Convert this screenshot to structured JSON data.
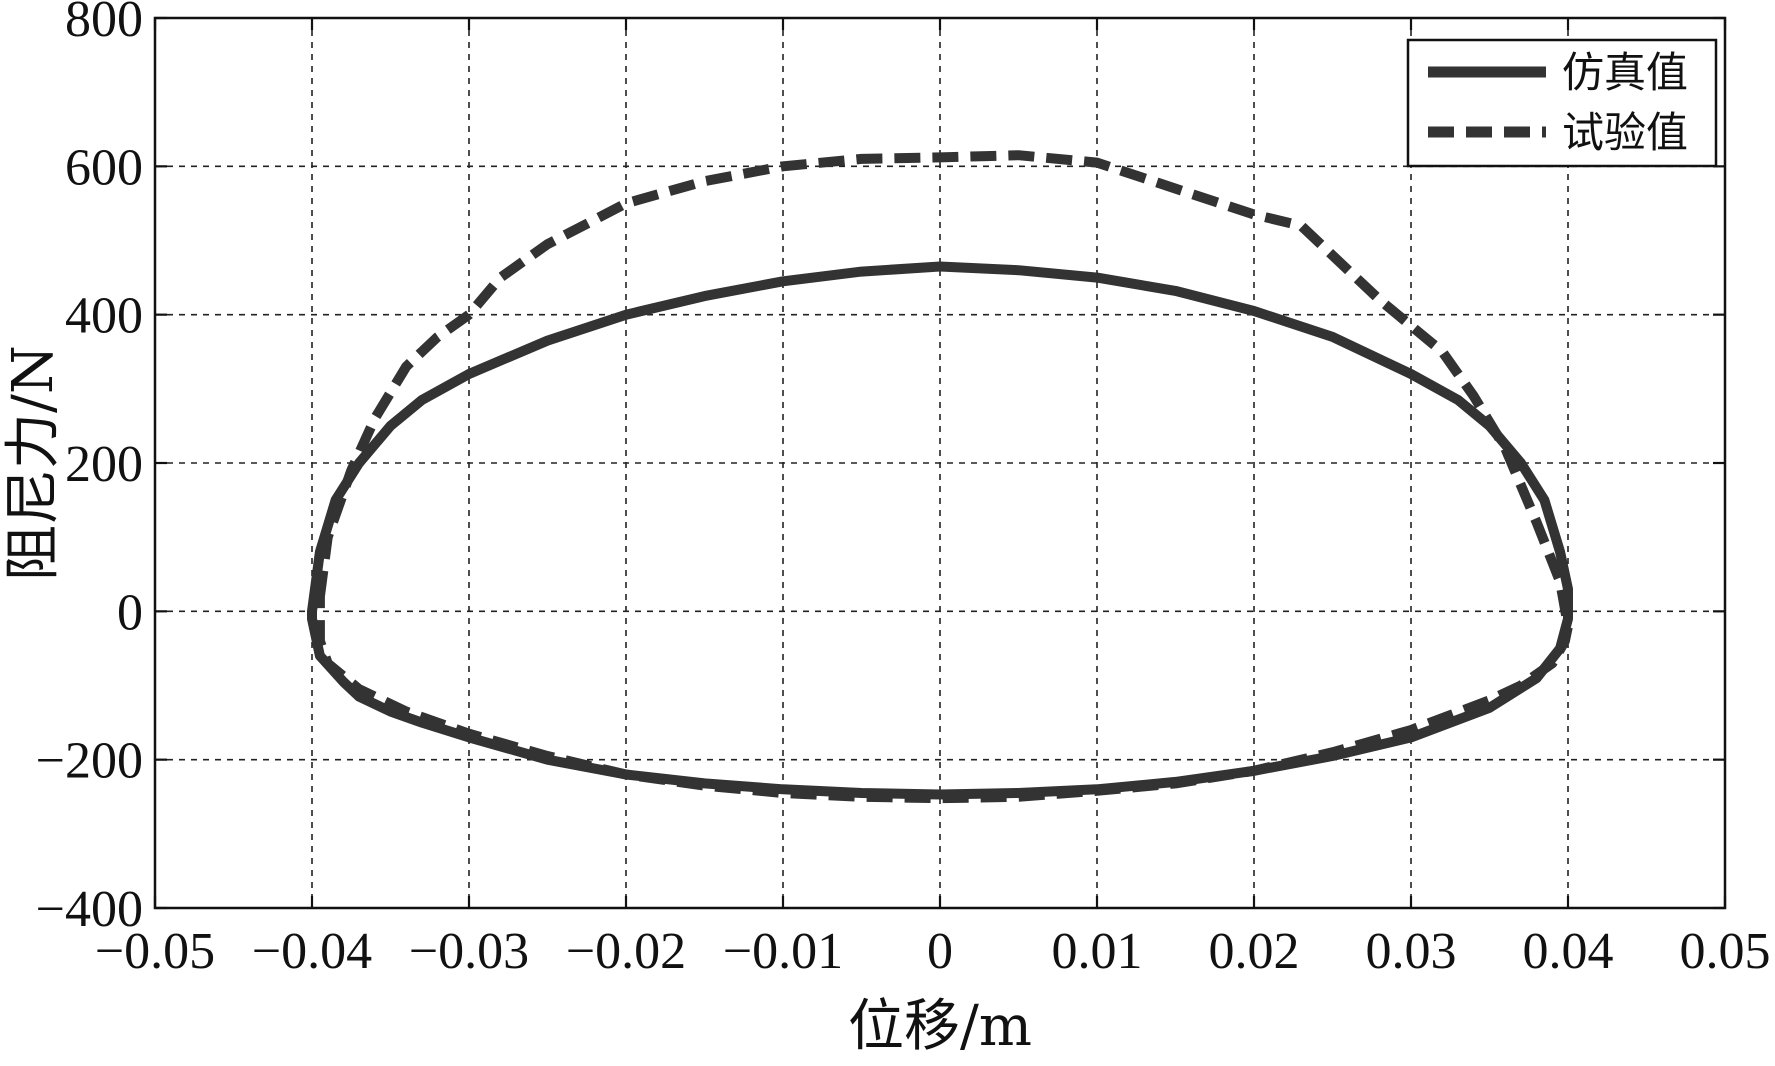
{
  "chart_data": {
    "type": "line",
    "xlabel": "位移/m",
    "ylabel": "阻尼力/N",
    "xlim": [
      -0.05,
      0.05
    ],
    "ylim": [
      -400,
      800
    ],
    "x_ticks": [
      -0.05,
      -0.04,
      -0.03,
      -0.02,
      -0.01,
      0,
      0.01,
      0.02,
      0.03,
      0.04,
      0.05
    ],
    "x_tick_labels": [
      "−0.05",
      "−0.04",
      "−0.03",
      "−0.02",
      "−0.01",
      "0",
      "0.01",
      "0.02",
      "0.03",
      "0.04",
      "0.05"
    ],
    "y_ticks": [
      -400,
      -200,
      0,
      200,
      400,
      600,
      800
    ],
    "y_tick_labels": [
      "−400",
      "−200",
      "0",
      "200",
      "400",
      "600",
      "800"
    ],
    "grid": true,
    "legend_position": "top-right",
    "series": [
      {
        "name": "仿真值",
        "style": "solid",
        "color": "#333333",
        "x": [
          -0.04,
          -0.0395,
          -0.0385,
          -0.037,
          -0.035,
          -0.033,
          -0.03,
          -0.025,
          -0.02,
          -0.015,
          -0.01,
          -0.005,
          0.0,
          0.005,
          0.01,
          0.015,
          0.02,
          0.025,
          0.03,
          0.033,
          0.035,
          0.037,
          0.0385,
          0.0395,
          0.04,
          0.04,
          0.0395,
          0.038,
          0.035,
          0.03,
          0.025,
          0.02,
          0.015,
          0.01,
          0.005,
          0.0,
          -0.005,
          -0.01,
          -0.015,
          -0.02,
          -0.025,
          -0.03,
          -0.033,
          -0.035,
          -0.037,
          -0.038,
          -0.0395,
          -0.04
        ],
        "y": [
          0,
          80,
          150,
          200,
          250,
          285,
          320,
          365,
          400,
          425,
          445,
          458,
          465,
          460,
          450,
          432,
          405,
          370,
          320,
          285,
          250,
          200,
          150,
          80,
          30,
          -10,
          -50,
          -90,
          -130,
          -170,
          -195,
          -215,
          -230,
          -240,
          -245,
          -247,
          -245,
          -240,
          -232,
          -220,
          -200,
          -170,
          -150,
          -135,
          -115,
          -95,
          -60,
          -10
        ]
      },
      {
        "name": "试验值",
        "style": "dashed",
        "color": "#333333",
        "x": [
          -0.0395,
          -0.039,
          -0.0375,
          -0.036,
          -0.034,
          -0.032,
          -0.03,
          -0.028,
          -0.025,
          -0.02,
          -0.015,
          -0.01,
          -0.005,
          0.0,
          0.005,
          0.01,
          0.015,
          0.02,
          0.023,
          0.026,
          0.028,
          0.03,
          0.032,
          0.034,
          0.036,
          0.038,
          0.0395,
          0.04,
          0.0398,
          0.039,
          0.037,
          0.035,
          0.03,
          0.025,
          0.02,
          0.015,
          0.01,
          0.005,
          0.0,
          -0.005,
          -0.01,
          -0.015,
          -0.02,
          -0.025,
          -0.03,
          -0.034,
          -0.037,
          -0.039,
          -0.0395
        ],
        "y": [
          20,
          100,
          190,
          260,
          330,
          370,
          400,
          450,
          495,
          550,
          580,
          600,
          610,
          612,
          615,
          605,
          570,
          535,
          520,
          460,
          420,
          385,
          350,
          290,
          220,
          120,
          40,
          -20,
          -40,
          -70,
          -100,
          -120,
          -160,
          -190,
          -215,
          -232,
          -242,
          -250,
          -252,
          -250,
          -245,
          -235,
          -220,
          -195,
          -165,
          -135,
          -105,
          -70,
          -40
        ]
      }
    ]
  }
}
